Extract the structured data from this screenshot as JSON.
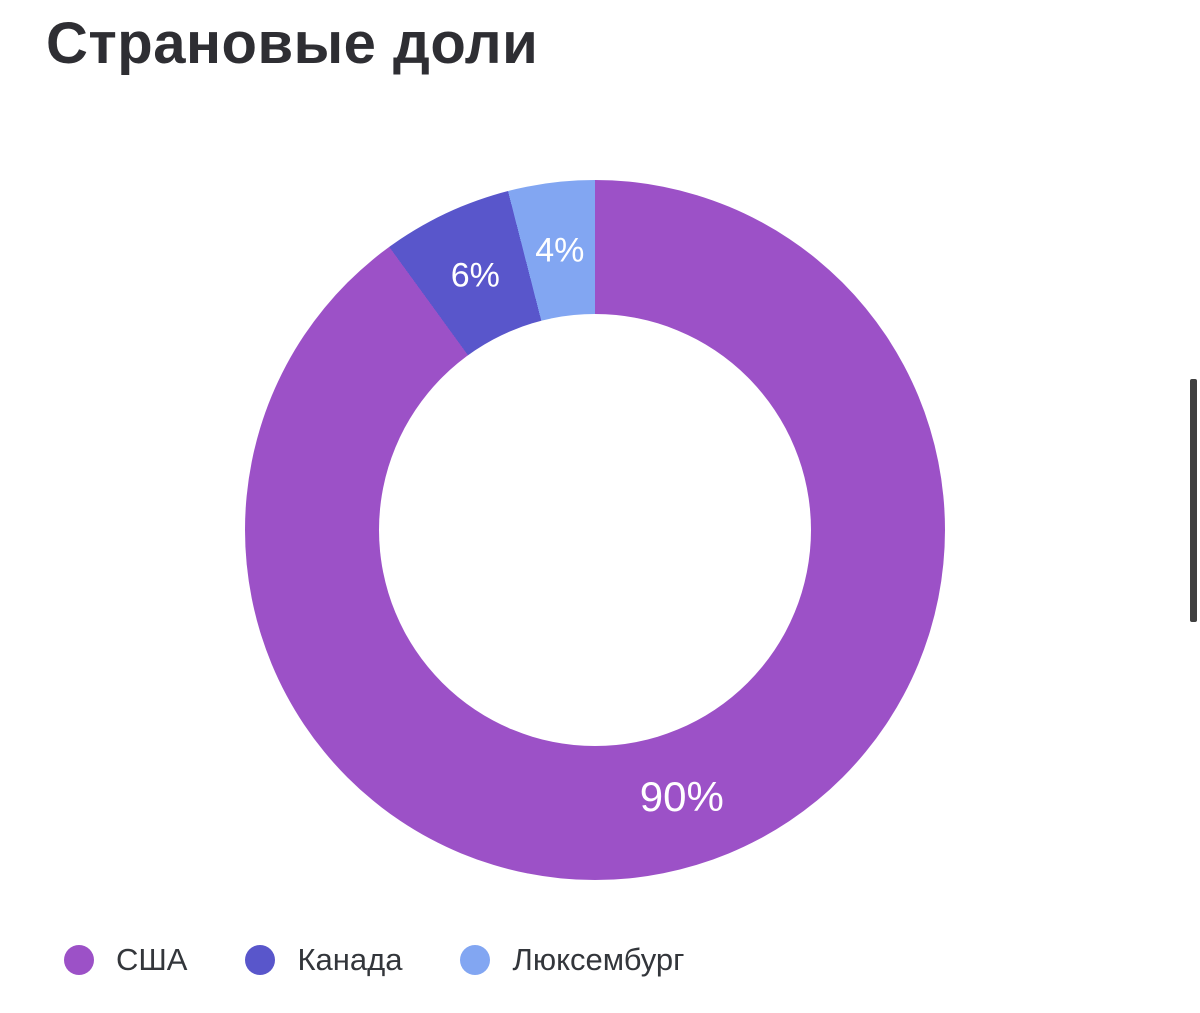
{
  "page": {
    "title": "Страновые доли"
  },
  "chart_data": {
    "type": "pie",
    "subtype": "donut",
    "title": "Страновые доли",
    "labels": [
      "США",
      "Канада",
      "Люксембург"
    ],
    "values": [
      90,
      6,
      4
    ],
    "value_labels": [
      "90%",
      "6%",
      "4%"
    ],
    "colors": [
      "#9c51c7",
      "#5956cb",
      "#82a6f2"
    ],
    "start_angle_deg": 0,
    "direction": "clockwise",
    "legend_position": "bottom",
    "background": "#ffffff",
    "label_color": "#ffffff"
  },
  "legend": {
    "items": [
      {
        "label": "США",
        "color": "#9c51c7"
      },
      {
        "label": "Канада",
        "color": "#5956cb"
      },
      {
        "label": "Люксембург",
        "color": "#82a6f2"
      }
    ]
  }
}
